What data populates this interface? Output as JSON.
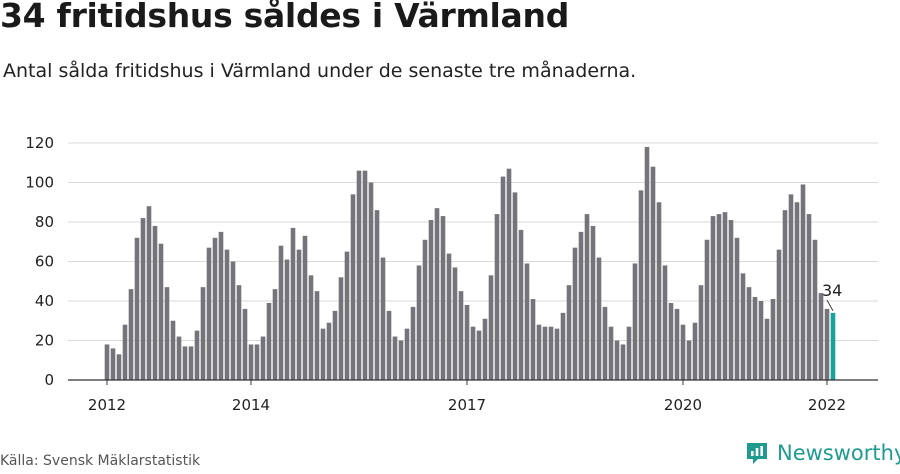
{
  "header": {
    "title": "34 fritidshus såldes i Värmland",
    "subtitle": "Antal sålda fritidshus i Värmland under de senaste tre månaderna."
  },
  "footer": {
    "source": "Källa: Svensk Mäklarstatistik",
    "brand": "Newsworthy"
  },
  "colors": {
    "bar": "#75747a",
    "highlight": "#15a39b",
    "grid": "#d9d9d9",
    "brand": "#1f9a8f"
  },
  "chart_data": {
    "type": "bar",
    "title": "34 fritidshus såldes i Värmland",
    "subtitle": "Antal sålda fritidshus i Värmland under de senaste tre månaderna.",
    "xlabel": "",
    "ylabel": "",
    "ylim": [
      0,
      120
    ],
    "yticks": [
      0,
      20,
      40,
      60,
      80,
      100,
      120
    ],
    "grid": true,
    "x_tick_labels": [
      {
        "label": "2012",
        "index": 0
      },
      {
        "label": "2014",
        "index": 24
      },
      {
        "label": "2017",
        "index": 60
      },
      {
        "label": "2020",
        "index": 96
      },
      {
        "label": "2022",
        "index": 120
      }
    ],
    "highlight_label": "34",
    "values": [
      18,
      16,
      13,
      28,
      46,
      72,
      82,
      88,
      78,
      69,
      47,
      30,
      22,
      17,
      17,
      25,
      47,
      67,
      72,
      75,
      66,
      60,
      48,
      36,
      18,
      18,
      22,
      39,
      46,
      68,
      61,
      77,
      66,
      73,
      53,
      45,
      26,
      29,
      35,
      52,
      65,
      94,
      106,
      106,
      100,
      86,
      62,
      35,
      22,
      20,
      26,
      37,
      58,
      71,
      81,
      87,
      83,
      64,
      57,
      45,
      38,
      27,
      25,
      31,
      53,
      84,
      103,
      107,
      95,
      76,
      59,
      41,
      28,
      27,
      27,
      26,
      34,
      48,
      67,
      75,
      84,
      78,
      62,
      37,
      27,
      20,
      18,
      27,
      59,
      96,
      118,
      108,
      90,
      58,
      39,
      36,
      28,
      20,
      29,
      48,
      71,
      83,
      84,
      85,
      81,
      72,
      54,
      47,
      42,
      40,
      31,
      41,
      66,
      86,
      94,
      90,
      99,
      84,
      71,
      44,
      36,
      34
    ]
  }
}
